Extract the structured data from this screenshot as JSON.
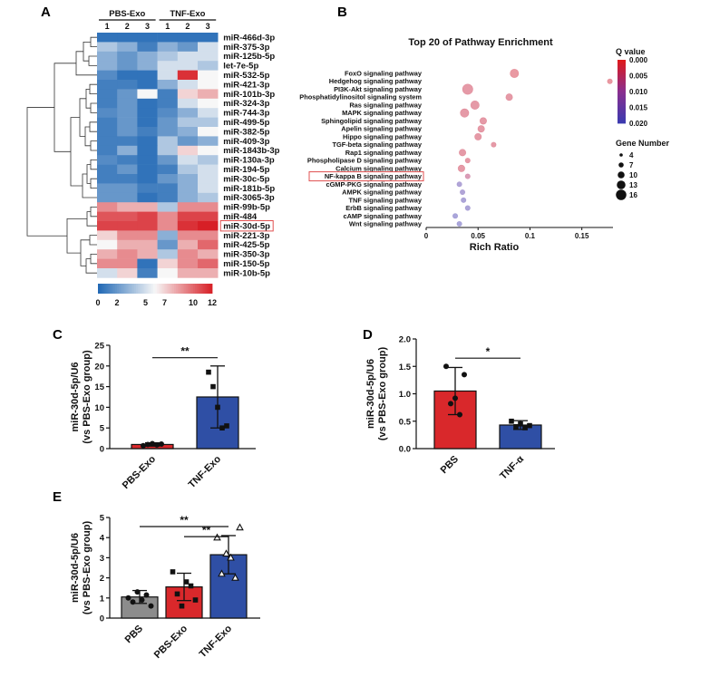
{
  "panel_labels": {
    "a": "A",
    "b": "B",
    "c": "C",
    "d": "D",
    "e": "E"
  },
  "colors": {
    "heat_low": "#1f67b4",
    "heat_mid": "#f7f7f7",
    "heat_high": "#d71f26",
    "bar_red": "#d9282b",
    "bar_blue": "#2f4fa5",
    "bar_gray": "#8c8c8c",
    "dot_low": "#3a3ab0",
    "dot_mid": "#8a2f8f",
    "dot_high": "#e01919",
    "highlight_box": "#e05050"
  },
  "chart_data": [
    {
      "type": "heatmap",
      "groups": [
        "PBS-Exo",
        "TNF-Exo"
      ],
      "columns": [
        "1",
        "2",
        "3",
        "1",
        "2",
        "3"
      ],
      "rows": [
        "miR-466d-3p",
        "miR-375-3p",
        "miR-125b-5p",
        "let-7e-5p",
        "miR-532-5p",
        "miR-421-3p",
        "miR-101b-3p",
        "miR-324-3p",
        "miR-744-3p",
        "miR-499-5p",
        "miR-382-5p",
        "miR-409-3p",
        "miR-1843b-3p",
        "miR-130a-3p",
        "miR-194-5p",
        "miR-30c-5p",
        "miR-181b-5p",
        "miR-3065-3p",
        "miR-99b-5p",
        "miR-484",
        "miR-30d-5p",
        "miR-221-3p",
        "miR-425-5p",
        "miR-350-3p",
        "miR-150-5p",
        "miR-10b-5p"
      ],
      "highlight_row": "miR-30d-5p",
      "values": [
        [
          0.5,
          0.5,
          0.5,
          0.5,
          0.5,
          0.5
        ],
        [
          4,
          3,
          1,
          3,
          2,
          5
        ],
        [
          3,
          2,
          3,
          4,
          5,
          5
        ],
        [
          3,
          2,
          3,
          5,
          5,
          4
        ],
        [
          1.5,
          0.5,
          0.5,
          5,
          11.5,
          6
        ],
        [
          1,
          1,
          0.5,
          3,
          5,
          6
        ],
        [
          1,
          2,
          6,
          1,
          7,
          8
        ],
        [
          1,
          2,
          0.5,
          1,
          5,
          6
        ],
        [
          1.5,
          2,
          0.5,
          1.5,
          3,
          5
        ],
        [
          1,
          2,
          0.5,
          2,
          4,
          4
        ],
        [
          1,
          2,
          1,
          2,
          3,
          6
        ],
        [
          1,
          1,
          0.5,
          4,
          2,
          3
        ],
        [
          1,
          3,
          0.5,
          4,
          7,
          6
        ],
        [
          1.5,
          1,
          0.5,
          2,
          5,
          4
        ],
        [
          1,
          2,
          0.5,
          1,
          4,
          5
        ],
        [
          1,
          1,
          0.5,
          2,
          3,
          5
        ],
        [
          2,
          2,
          1,
          1,
          3,
          5
        ],
        [
          2,
          2,
          0.5,
          1,
          3,
          4
        ],
        [
          9,
          8,
          8,
          4,
          9,
          9
        ],
        [
          10.5,
          10.5,
          11,
          9,
          11,
          11
        ],
        [
          11,
          11,
          11,
          9,
          11.5,
          12
        ],
        [
          7,
          9,
          9,
          3,
          9,
          9
        ],
        [
          6,
          8,
          8,
          2,
          8,
          10
        ],
        [
          8,
          9,
          8,
          4,
          9,
          8
        ],
        [
          9,
          9,
          0.5,
          7,
          9,
          10
        ],
        [
          5,
          7,
          1,
          6,
          8,
          8
        ]
      ],
      "colorbar": {
        "ticks": [
          "0",
          "2",
          "5",
          "7",
          "10",
          "12"
        ],
        "range": [
          0,
          12
        ]
      }
    },
    {
      "type": "scatter",
      "title": "Top 20 of Pathway Enrichment",
      "xlabel": "Rich Ratio",
      "xlim": [
        0,
        0.18
      ],
      "xticks": [
        "0",
        "0.05",
        "0.1",
        "0.15"
      ],
      "xtick_values": [
        0,
        0.05,
        0.1,
        0.15
      ],
      "highlight": "NF-kappa B signaling pathway",
      "pathways": [
        {
          "name": "FoxO signaling pathway",
          "x": 0.085,
          "q": 0.002,
          "genes": 13
        },
        {
          "name": "Hedgehog signaling pathway",
          "x": 0.177,
          "q": 0.002,
          "genes": 7
        },
        {
          "name": "PI3K-Akt signaling pathway",
          "x": 0.04,
          "q": 0.003,
          "genes": 16
        },
        {
          "name": "Phosphatidylinositol signaling system",
          "x": 0.08,
          "q": 0.003,
          "genes": 10
        },
        {
          "name": "Ras signaling pathway",
          "x": 0.047,
          "q": 0.003,
          "genes": 13
        },
        {
          "name": "MAPK signaling pathway",
          "x": 0.037,
          "q": 0.003,
          "genes": 13
        },
        {
          "name": "Sphingolipid signaling pathway",
          "x": 0.055,
          "q": 0.003,
          "genes": 10
        },
        {
          "name": "Apelin signaling pathway",
          "x": 0.053,
          "q": 0.003,
          "genes": 10
        },
        {
          "name": "Hippo signaling pathway",
          "x": 0.05,
          "q": 0.003,
          "genes": 10
        },
        {
          "name": "TGF-beta signaling pathway",
          "x": 0.065,
          "q": 0.003,
          "genes": 7
        },
        {
          "name": "Rap1 signaling pathway",
          "x": 0.035,
          "q": 0.003,
          "genes": 10
        },
        {
          "name": "Phospholipase D signaling pathway",
          "x": 0.04,
          "q": 0.003,
          "genes": 7
        },
        {
          "name": "Calcium signaling pathway",
          "x": 0.034,
          "q": 0.003,
          "genes": 10
        },
        {
          "name": "NF-kappa B signaling pathway",
          "x": 0.04,
          "q": 0.006,
          "genes": 7
        },
        {
          "name": "cGMP-PKG signaling pathway",
          "x": 0.032,
          "q": 0.017,
          "genes": 7
        },
        {
          "name": "AMPK signaling pathway",
          "x": 0.035,
          "q": 0.017,
          "genes": 7
        },
        {
          "name": "TNF signaling pathway",
          "x": 0.036,
          "q": 0.018,
          "genes": 7
        },
        {
          "name": "ErbB signaling pathway",
          "x": 0.04,
          "q": 0.018,
          "genes": 7
        },
        {
          "name": "cAMP signaling pathway",
          "x": 0.028,
          "q": 0.019,
          "genes": 7
        },
        {
          "name": "Wnt signaling pathway",
          "x": 0.032,
          "q": 0.019,
          "genes": 7
        }
      ],
      "legend_q": {
        "title": "Q value",
        "ticks": [
          "0.000",
          "0.005",
          "0.010",
          "0.015",
          "0.020"
        ],
        "tick_values": [
          0,
          0.005,
          0.01,
          0.015,
          0.02
        ]
      },
      "legend_size": {
        "title": "Gene Number",
        "entries": [
          "4",
          "7",
          "10",
          "13",
          "16"
        ],
        "entry_values": [
          4,
          7,
          10,
          13,
          16
        ]
      }
    },
    {
      "type": "bar",
      "ylabel": "miR-30d-5p/U6 (vs PBS-Exo group)",
      "ylabel_line1": "miR-30d-5p/U6",
      "ylabel_line2": "(vs PBS-Exo group)",
      "categories": [
        "PBS-Exo",
        "TNF-Exo"
      ],
      "values": [
        1,
        12.5
      ],
      "errors": [
        0.4,
        7.5
      ],
      "ylim": [
        0,
        25
      ],
      "yticks": [
        "0",
        "5",
        "10",
        "15",
        "20",
        "25"
      ],
      "ytick_values": [
        0,
        5,
        10,
        15,
        20,
        25
      ],
      "points": [
        [
          0.7,
          1.0,
          1.2,
          0.9,
          1.1
        ],
        [
          18.5,
          15,
          10,
          5,
          5.5
        ]
      ],
      "significance": [
        {
          "label": "**",
          "from": 0,
          "to": 1,
          "y": 22
        }
      ]
    },
    {
      "type": "bar",
      "ylabel_line1": "miR-30d-5p/U6",
      "ylabel_line2": "(vs PBS-Exo group)",
      "categories": [
        "PBS",
        "TNF-α"
      ],
      "values": [
        1.05,
        0.43
      ],
      "errors": [
        0.43,
        0.08
      ],
      "ylim": [
        0,
        2.0
      ],
      "yticks": [
        "0.0",
        "0.5",
        "1.0",
        "1.5",
        "2.0"
      ],
      "ytick_values": [
        0,
        0.5,
        1.0,
        1.5,
        2.0
      ],
      "points": [
        [
          1.5,
          0.82,
          0.92,
          0.62,
          1.35
        ],
        [
          0.5,
          0.4,
          0.45,
          0.38,
          0.42
        ]
      ],
      "significance": [
        {
          "label": "*",
          "from": 0,
          "to": 1,
          "y": 1.65
        }
      ]
    },
    {
      "type": "bar",
      "ylabel_line1": "miR-30d-5p/U6",
      "ylabel_line2": "(vs PBS-Exo group)",
      "categories": [
        "PBS",
        "PBS-Exo",
        "TNF-Exo"
      ],
      "values": [
        1.05,
        1.55,
        3.15
      ],
      "errors": [
        0.32,
        0.68,
        0.95
      ],
      "ylim": [
        0,
        5
      ],
      "yticks": [
        "0",
        "1",
        "2",
        "3",
        "4",
        "5"
      ],
      "ytick_values": [
        0,
        1,
        2,
        3,
        4,
        5
      ],
      "points": [
        [
          1.0,
          0.8,
          1.3,
          0.9,
          1.15,
          0.6
        ],
        [
          2.3,
          1.2,
          0.6,
          1.8,
          1.6,
          0.9
        ],
        [
          4.0,
          2.2,
          3.2,
          3.0,
          2.0,
          4.5
        ]
      ],
      "significance": [
        {
          "label": "**",
          "from": 0,
          "to": 2,
          "y": 4.55
        },
        {
          "label": "**",
          "from": 1,
          "to": 2,
          "y": 4.05
        }
      ]
    }
  ]
}
